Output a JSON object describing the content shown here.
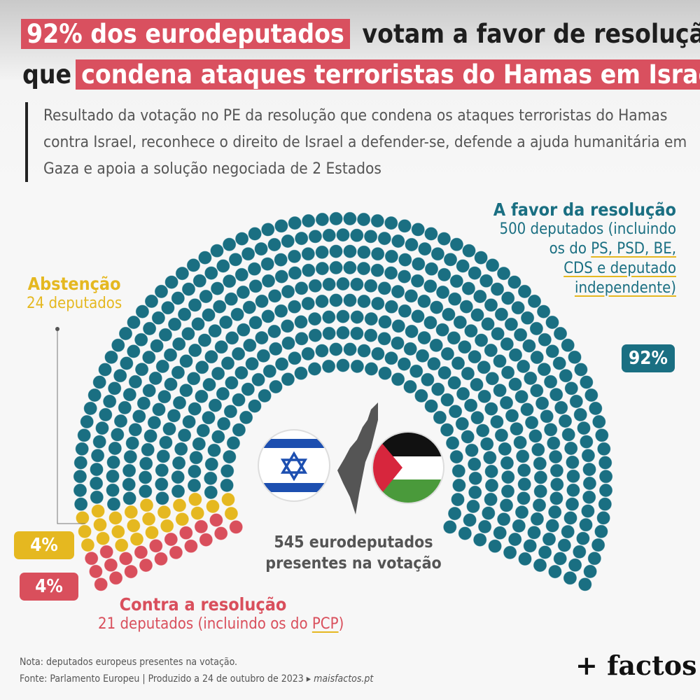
{
  "title": {
    "line1_highlight": "92% dos eurodeputados",
    "line1_rest": "votam a favor de resolução",
    "line2_start": "que",
    "line2_highlight": "condena ataques terroristas do Hamas em Israel"
  },
  "subtitle": "Resultado da votação no PE da resolução que condena os ataques terroristas do Hamas contra Israel, reconhece o direito de Israel a defender-se, defende a ajuda humanitária em Gaza e apoia a solução negociada de 2 Estados",
  "favor": {
    "title": "A favor da resolução",
    "l1": "500 deputados (incluindo",
    "l2a": "os do ",
    "l2b": "PS, PSD, BE,",
    "l3": "CDS e deputado",
    "l4": "independente)",
    "pct": "92%"
  },
  "abst": {
    "title": "Abstenção",
    "desc": "24 deputados",
    "pct": "4%"
  },
  "contra": {
    "title": "Contra a resolução",
    "desc_a": "21 deputados (incluindo os do ",
    "desc_b": "PCP",
    "desc_c": ")",
    "pct": "4%"
  },
  "center": {
    "l1": "545 eurodeputados",
    "l2": "presentes na votação"
  },
  "footer": {
    "note": "Nota: deputados europeus presentes na votação.",
    "source": "Fonte: Parlamento Europeu | Produzido a 24 de outubro de 2023 ▸ ",
    "site": "maisfactos.pt",
    "logo": "+ factos"
  },
  "chart_data": {
    "type": "parliament",
    "total": 545,
    "series": [
      {
        "name": "Contra a resolução",
        "value": 21,
        "color": "#d94f5c"
      },
      {
        "name": "Abstenção",
        "value": 24,
        "color": "#e5b820"
      },
      {
        "name": "A favor da resolução",
        "value": 500,
        "color": "#1a6f82"
      }
    ]
  }
}
